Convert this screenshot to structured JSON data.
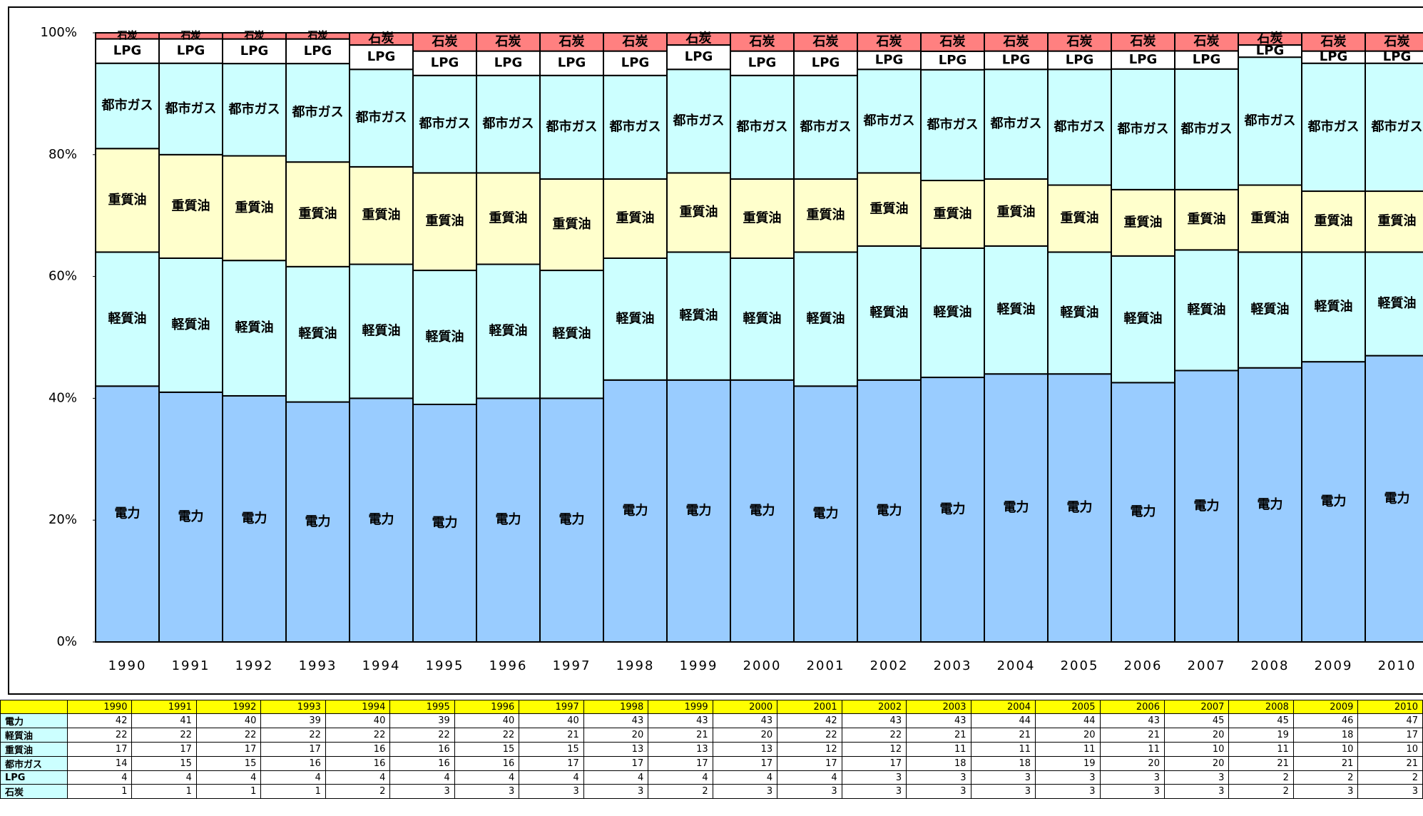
{
  "chart_data": {
    "type": "stacked_bar_100",
    "categories": [
      "1990",
      "1991",
      "1992",
      "1993",
      "1994",
      "1995",
      "1996",
      "1997",
      "1998",
      "1999",
      "2000",
      "2001",
      "2002",
      "2003",
      "2004",
      "2005",
      "2006",
      "2007",
      "2008",
      "2009",
      "2010"
    ],
    "series": [
      {
        "name": "電力",
        "color": "#99ccff",
        "values": [
          42,
          41,
          40,
          39,
          40,
          39,
          40,
          40,
          43,
          43,
          43,
          42,
          43,
          43,
          44,
          44,
          43,
          45,
          45,
          46,
          47
        ]
      },
      {
        "name": "軽質油",
        "color": "#ccffff",
        "values": [
          22,
          22,
          22,
          22,
          22,
          22,
          22,
          21,
          20,
          21,
          20,
          22,
          22,
          21,
          21,
          20,
          21,
          20,
          19,
          18,
          17
        ]
      },
      {
        "name": "重質油",
        "color": "#ffffcc",
        "values": [
          17,
          17,
          17,
          17,
          16,
          16,
          15,
          15,
          13,
          13,
          13,
          12,
          12,
          11,
          11,
          11,
          11,
          10,
          11,
          10,
          10
        ]
      },
      {
        "name": "都市ガス",
        "color": "#ccffff",
        "values": [
          14,
          15,
          15,
          16,
          16,
          16,
          16,
          17,
          17,
          17,
          17,
          17,
          17,
          18,
          18,
          19,
          20,
          20,
          21,
          21,
          21
        ]
      },
      {
        "name": "LPG",
        "color": "#ffffff",
        "values": [
          4,
          4,
          4,
          4,
          4,
          4,
          4,
          4,
          4,
          4,
          4,
          4,
          3,
          3,
          3,
          3,
          3,
          3,
          2,
          2,
          2
        ]
      },
      {
        "name": "石炭",
        "color": "#ff8080",
        "values": [
          1,
          1,
          1,
          1,
          2,
          3,
          3,
          3,
          3,
          2,
          3,
          3,
          3,
          3,
          3,
          3,
          3,
          3,
          2,
          3,
          3
        ]
      }
    ],
    "ylim": [
      0,
      100
    ],
    "yticks": [
      {
        "value": 0,
        "label": "0%"
      },
      {
        "value": 20,
        "label": "20%"
      },
      {
        "value": 40,
        "label": "40%"
      },
      {
        "value": 60,
        "label": "60%"
      },
      {
        "value": 80,
        "label": "80%"
      },
      {
        "value": 100,
        "label": "100%"
      }
    ]
  }
}
